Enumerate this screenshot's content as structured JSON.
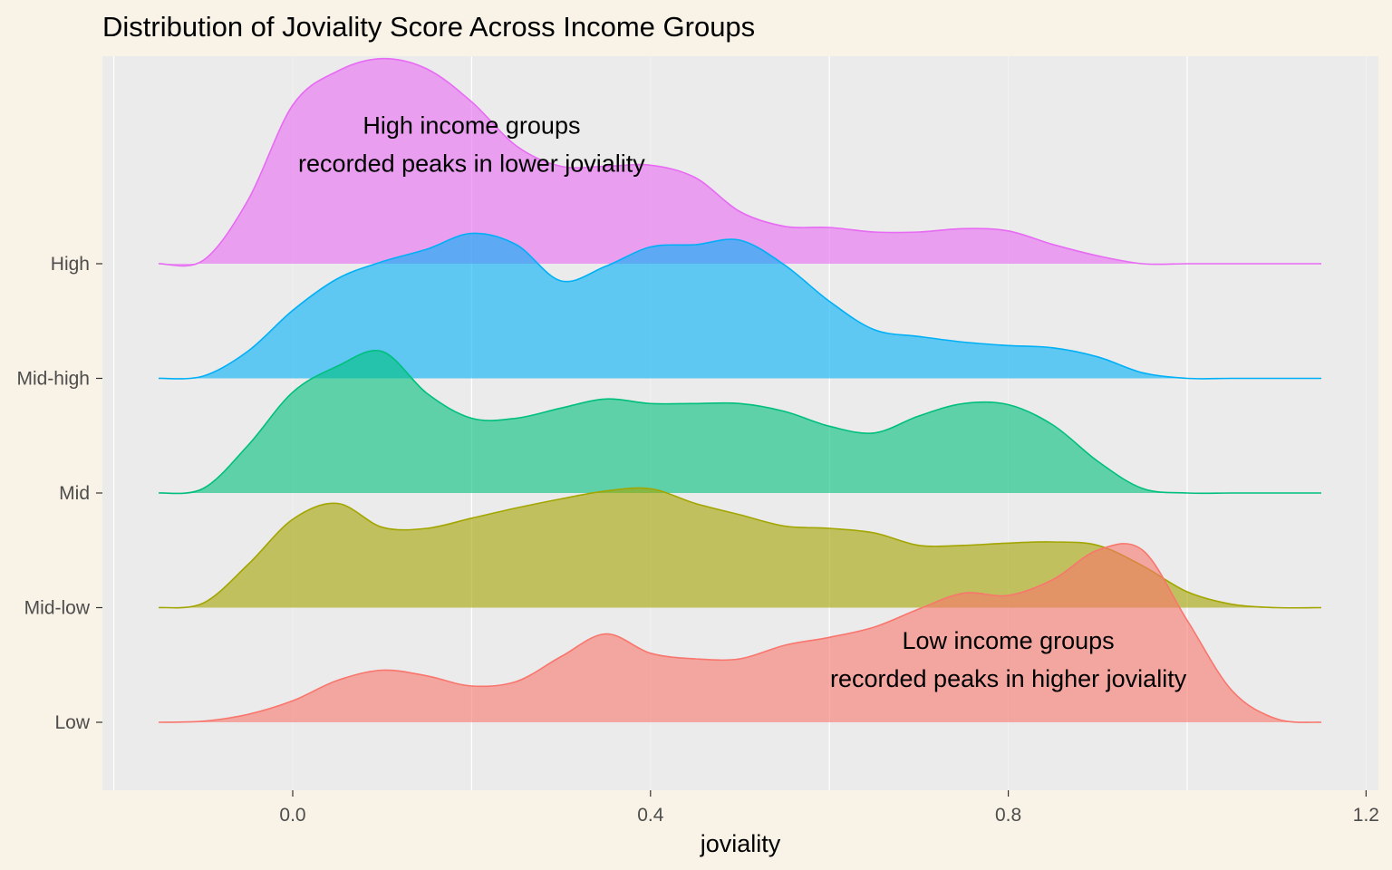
{
  "chart_data": {
    "type": "area",
    "title": "Distribution of Joviality Score Across Income Groups",
    "xlabel": "joviality",
    "ylabel": "",
    "xlim": [
      -0.2,
      1.2
    ],
    "x_ticks": [
      0.0,
      0.4,
      0.8,
      1.2
    ],
    "x_tick_labels": [
      "0.0",
      "0.4",
      "0.8",
      "1.2"
    ],
    "grid": true,
    "legend": "none",
    "categories": [
      "Low",
      "Mid-low",
      "Mid",
      "Mid-high",
      "High"
    ],
    "x": [
      -0.15,
      -0.1,
      -0.05,
      0.0,
      0.05,
      0.1,
      0.15,
      0.2,
      0.25,
      0.3,
      0.35,
      0.4,
      0.45,
      0.5,
      0.55,
      0.6,
      0.65,
      0.7,
      0.75,
      0.8,
      0.85,
      0.9,
      0.95,
      1.0,
      1.05,
      1.1,
      1.15
    ],
    "series": [
      {
        "name": "Low",
        "color": "#f8766d",
        "values": [
          0.0,
          0.05,
          0.35,
          0.95,
          1.85,
          2.3,
          2.05,
          1.6,
          1.8,
          2.9,
          3.9,
          3.05,
          2.8,
          2.8,
          3.4,
          3.75,
          4.2,
          5.0,
          5.7,
          5.6,
          6.3,
          7.6,
          7.6,
          4.5,
          1.4,
          0.15,
          0.0
        ]
      },
      {
        "name": "Mid-low",
        "color": "#a3a500",
        "values": [
          0.0,
          0.2,
          1.9,
          3.9,
          4.6,
          3.55,
          3.5,
          3.95,
          4.4,
          4.8,
          5.15,
          5.25,
          4.6,
          4.1,
          3.6,
          3.5,
          3.3,
          2.75,
          2.75,
          2.85,
          2.9,
          2.75,
          1.85,
          0.7,
          0.15,
          0.0,
          0.0
        ]
      },
      {
        "name": "Mid",
        "color": "#00bf7d",
        "values": [
          0.0,
          0.2,
          2.1,
          4.45,
          5.6,
          6.25,
          4.4,
          3.3,
          3.3,
          3.75,
          4.15,
          3.95,
          3.95,
          3.95,
          3.6,
          2.95,
          2.65,
          3.4,
          3.95,
          3.9,
          3.0,
          1.4,
          0.2,
          0.0,
          0.0,
          0.0,
          0.0
        ]
      },
      {
        "name": "Mid-high",
        "color": "#00b0f6",
        "values": [
          0.0,
          0.1,
          1.2,
          3.0,
          4.4,
          5.15,
          5.7,
          6.4,
          5.9,
          4.3,
          4.95,
          5.8,
          5.9,
          6.1,
          5.0,
          3.4,
          2.15,
          1.85,
          1.6,
          1.45,
          1.35,
          0.95,
          0.25,
          0.0,
          0.0,
          0.0,
          0.0
        ]
      },
      {
        "name": "High",
        "color": "#e76bf3",
        "values": [
          0.0,
          0.15,
          2.8,
          7.0,
          8.5,
          9.05,
          8.6,
          7.15,
          5.2,
          4.3,
          4.3,
          4.35,
          3.8,
          2.3,
          1.65,
          1.6,
          1.4,
          1.4,
          1.55,
          1.45,
          0.85,
          0.35,
          0.0,
          0.0,
          0.0,
          0.0,
          0.0
        ]
      }
    ],
    "annotations": [
      {
        "lines": [
          "High income groups",
          "recorded peaks in lower joviality"
        ],
        "x": 0.2,
        "y_group": "High",
        "offset": 5.5
      },
      {
        "lines": [
          "Low income groups",
          "recorded peaks in higher joviality"
        ],
        "x": 0.8,
        "y_group": "Low",
        "offset": 3.0
      }
    ]
  }
}
